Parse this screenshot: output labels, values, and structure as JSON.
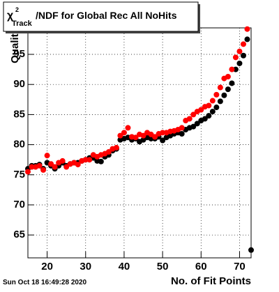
{
  "chart_data": {
    "type": "scatter",
    "title": {
      "symbol": "χ",
      "superscript": "2",
      "subscript": "Track",
      "text": "/NDF for Global Rec All NoHits"
    },
    "x_label": "No. of Fit Points",
    "y_label": "Quality",
    "timestamp": "Sun Oct 18 16:49:28 2020",
    "xlim": [
      15,
      73
    ],
    "ylim": [
      61.2,
      99.4
    ],
    "xticks": [
      20,
      30,
      40,
      50,
      60,
      70
    ],
    "yticks": [
      65,
      70,
      75,
      80,
      85,
      90,
      95
    ],
    "grid": true,
    "x": [
      15,
      16,
      17,
      18,
      19,
      20,
      21,
      22,
      23,
      24,
      25,
      26,
      27,
      28,
      29,
      30,
      31,
      32,
      33,
      34,
      35,
      36,
      37,
      38,
      39,
      40,
      41,
      42,
      43,
      44,
      45,
      46,
      47,
      48,
      49,
      50,
      51,
      52,
      53,
      54,
      55,
      56,
      57,
      58,
      59,
      60,
      61,
      62,
      63,
      64,
      65,
      66,
      67,
      68,
      69,
      70,
      71,
      72,
      73
    ],
    "series": [
      {
        "color": "#000000",
        "values": [
          76.0,
          76.5,
          76.5,
          76.7,
          76.0,
          77.0,
          76.5,
          76.0,
          76.5,
          77.0,
          76.5,
          76.8,
          77.0,
          77.0,
          77.3,
          77.5,
          77.8,
          77.8,
          77.3,
          77.2,
          78.0,
          78.3,
          79.0,
          79.3,
          80.8,
          81.0,
          81.2,
          80.8,
          81.0,
          80.5,
          80.8,
          81.2,
          81.0,
          81.0,
          81.3,
          80.7,
          81.2,
          81.5,
          81.8,
          82.0,
          81.8,
          82.5,
          82.8,
          83.0,
          83.5,
          84.0,
          84.3,
          84.8,
          85.5,
          86.2,
          87.2,
          88.2,
          89.2,
          90.2,
          92.5,
          93.5,
          94.8,
          97.5,
          62.5
        ]
      },
      {
        "color": "#ff0000",
        "values": [
          75.5,
          76.3,
          76.3,
          76.5,
          75.8,
          78.2,
          76.8,
          76.3,
          77.0,
          77.3,
          76.3,
          76.8,
          77.0,
          76.7,
          77.3,
          77.5,
          77.5,
          78.3,
          78.0,
          78.3,
          78.5,
          78.8,
          79.3,
          79.5,
          81.5,
          82.0,
          82.8,
          81.3,
          81.2,
          81.7,
          81.5,
          82.0,
          81.7,
          81.3,
          81.8,
          82.0,
          82.0,
          82.2,
          82.3,
          82.5,
          82.8,
          84.0,
          84.3,
          85.0,
          85.5,
          85.8,
          86.3,
          86.5,
          87.3,
          88.3,
          89.5,
          91.0,
          91.3,
          92.5,
          94.5,
          95.5,
          96.7,
          99.2,
          null
        ]
      }
    ]
  }
}
